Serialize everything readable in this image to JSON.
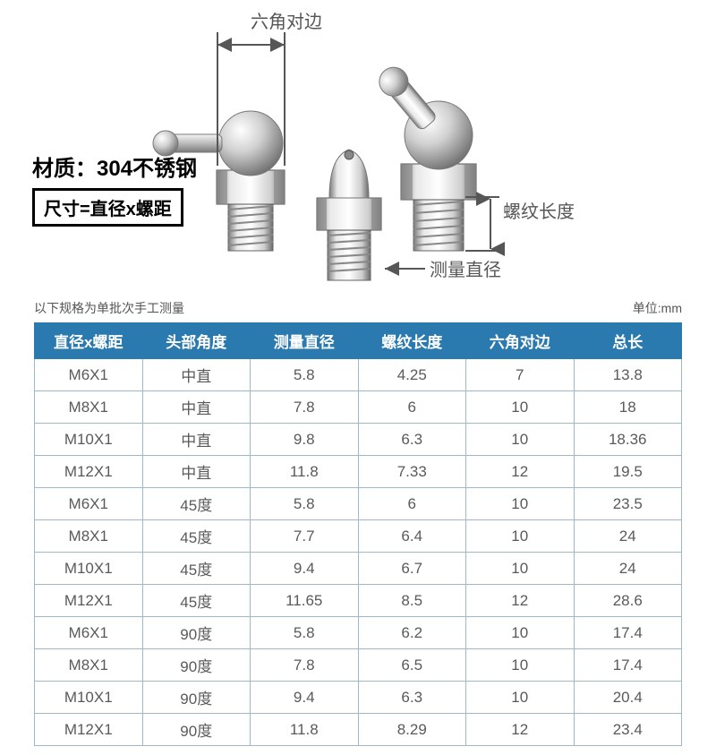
{
  "diagram": {
    "top_label": "六角对边",
    "material": "材质：304不锈钢",
    "size_formula": "尺寸=直径x螺距",
    "thread_length_label": "螺纹长度",
    "measure_diameter_label": "测量直径"
  },
  "table": {
    "caption_left": "以下规格为单批次手工测量",
    "caption_right": "单位:mm",
    "header_bg": "#2a7ab0",
    "header_color": "#ffffff",
    "border_color": "#9fb9c7",
    "cell_color": "#5a5a5a",
    "columns": [
      "直径x螺距",
      "头部角度",
      "测量直径",
      "螺纹长度",
      "六角对边",
      "总长"
    ],
    "rows": [
      [
        "M6X1",
        "中直",
        "5.8",
        "4.25",
        "7",
        "13.8"
      ],
      [
        "M8X1",
        "中直",
        "7.8",
        "6",
        "10",
        "18"
      ],
      [
        "M10X1",
        "中直",
        "9.8",
        "6.3",
        "10",
        "18.36"
      ],
      [
        "M12X1",
        "中直",
        "11.8",
        "7.33",
        "12",
        "19.5"
      ],
      [
        "M6X1",
        "45度",
        "5.8",
        "6",
        "10",
        "23.5"
      ],
      [
        "M8X1",
        "45度",
        "7.7",
        "6.4",
        "10",
        "24"
      ],
      [
        "M10X1",
        "45度",
        "9.4",
        "6.7",
        "10",
        "24"
      ],
      [
        "M12X1",
        "45度",
        "11.65",
        "8.5",
        "12",
        "28.6"
      ],
      [
        "M6X1",
        "90度",
        "5.8",
        "6.2",
        "10",
        "17.4"
      ],
      [
        "M8X1",
        "90度",
        "7.8",
        "6.5",
        "10",
        "17.4"
      ],
      [
        "M10X1",
        "90度",
        "9.4",
        "6.3",
        "10",
        "20.4"
      ],
      [
        "M12X1",
        "90度",
        "11.8",
        "8.29",
        "12",
        "23.4"
      ]
    ]
  }
}
